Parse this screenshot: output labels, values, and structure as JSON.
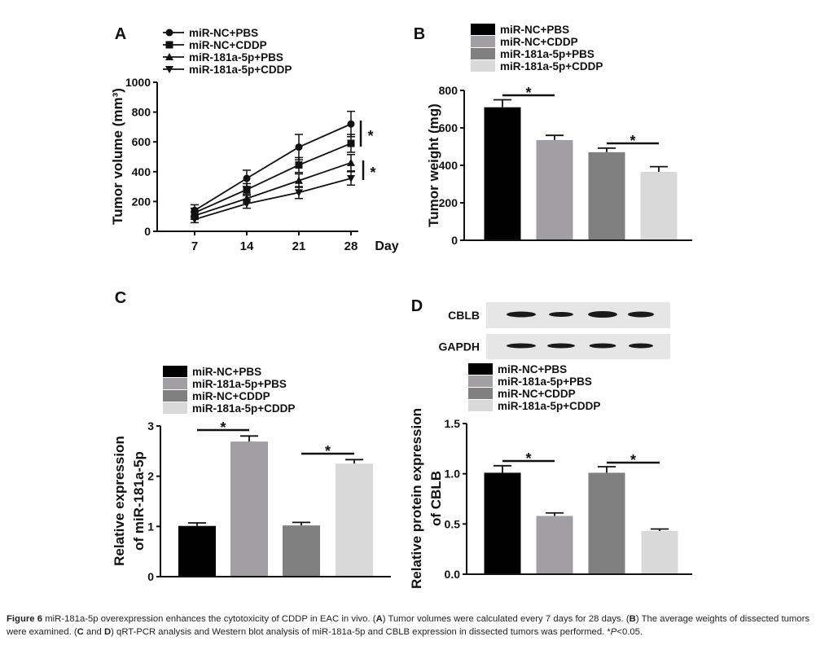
{
  "chart_data": [
    {
      "panel": "A",
      "type": "line",
      "ylabel": "Tumor volume (mm³)",
      "xlabel": "Day",
      "x": [
        7,
        14,
        21,
        28
      ],
      "xticks": [
        "7",
        "14",
        "21",
        "28"
      ],
      "ylim": [
        0,
        1000
      ],
      "yticks": [
        "0",
        "200",
        "400",
        "600",
        "800",
        "1000"
      ],
      "ytick_values": [
        0,
        200,
        400,
        600,
        800,
        1000
      ],
      "series": [
        {
          "name": "miR-NC+PBS",
          "marker": "circle",
          "values": [
            140,
            355,
            565,
            720
          ],
          "errors": [
            38,
            55,
            85,
            85
          ]
        },
        {
          "name": "miR-NC+CDDP",
          "marker": "square",
          "values": [
            125,
            280,
            445,
            590
          ],
          "errors": [
            30,
            40,
            50,
            60
          ]
        },
        {
          "name": "miR-181a-5p+PBS",
          "marker": "triangle",
          "values": [
            105,
            220,
            340,
            460
          ],
          "errors": [
            25,
            30,
            45,
            55
          ]
        },
        {
          "name": "miR-181a-5p+CDDP",
          "marker": "triangle-down",
          "values": [
            80,
            185,
            260,
            355
          ],
          "errors": [
            22,
            30,
            40,
            45
          ]
        }
      ],
      "significance": [
        "*",
        "*"
      ],
      "grid": false,
      "legend": "top-left"
    },
    {
      "panel": "B",
      "type": "bar",
      "ylabel": "Tumor weight (mg)",
      "categories": [
        "miR-NC+PBS",
        "miR-NC+CDDP",
        "miR-181a-5p+PBS",
        "miR-181a-5p+CDDP"
      ],
      "values": [
        710,
        535,
        470,
        365
      ],
      "errors": [
        40,
        25,
        22,
        28
      ],
      "colors": [
        "#000000",
        "#a19ea4",
        "#808080",
        "#d9d9d9"
      ],
      "ylim": [
        0,
        800
      ],
      "yticks": [
        "0",
        "200",
        "400",
        "600",
        "800"
      ],
      "ytick_values": [
        0,
        200,
        400,
        600,
        800
      ],
      "significance": [
        {
          "pair": [
            0,
            1
          ],
          "label": "*"
        },
        {
          "pair": [
            2,
            3
          ],
          "label": "*"
        }
      ],
      "grid": false,
      "legend": "top-left"
    },
    {
      "panel": "C",
      "type": "bar",
      "ylabel": [
        "Relative expression",
        "of miR-181a-5p"
      ],
      "categories": [
        "miR-NC+PBS",
        "miR-181a-5p+PBS",
        "miR-NC+CDDP",
        "miR-181a-5p+CDDP"
      ],
      "values": [
        1.01,
        2.69,
        1.02,
        2.25
      ],
      "errors": [
        0.06,
        0.11,
        0.06,
        0.08
      ],
      "colors": [
        "#000000",
        "#a19ea4",
        "#808080",
        "#d9d9d9"
      ],
      "ylim": [
        0,
        3
      ],
      "yticks": [
        "0",
        "1",
        "2",
        "3"
      ],
      "ytick_values": [
        0,
        1,
        2,
        3
      ],
      "significance": [
        {
          "pair": [
            0,
            1
          ],
          "label": "*"
        },
        {
          "pair": [
            2,
            3
          ],
          "label": "*"
        }
      ],
      "grid": false,
      "legend": "top-left"
    },
    {
      "panel": "D",
      "type": "bar",
      "ylabel": [
        "Relative protein expression",
        "of CBLB"
      ],
      "categories": [
        "miR-NC+PBS",
        "miR-181a-5p+PBS",
        "miR-NC+CDDP",
        "miR-181a-5p+CDDP"
      ],
      "values": [
        1.01,
        0.58,
        1.01,
        0.43
      ],
      "errors": [
        0.07,
        0.03,
        0.06,
        0.02
      ],
      "colors": [
        "#000000",
        "#a19ea4",
        "#808080",
        "#d9d9d9"
      ],
      "ylim": [
        0,
        1.5
      ],
      "yticks": [
        "0.0",
        "0.5",
        "1.0",
        "1.5"
      ],
      "ytick_values": [
        0,
        0.5,
        1.0,
        1.5
      ],
      "significance": [
        {
          "pair": [
            0,
            1
          ],
          "label": "*"
        },
        {
          "pair": [
            2,
            3
          ],
          "label": "*"
        }
      ],
      "blot": {
        "rows": [
          "CBLB",
          "GAPDH"
        ]
      },
      "grid": false,
      "legend": "top-left"
    }
  ],
  "caption": {
    "fig": "Figure 6",
    "t1": " miR-181a-5p overexpression enhances the cytotoxicity of CDDP in EAC in vivo. (",
    "a": "A",
    "t2": ") Tumor volumes were calculated every 7 days for 28 days. (",
    "b": "B",
    "t3": ") The average weights of dissected tumors were examined. (",
    "c": "C",
    "t4": " and ",
    "d": "D",
    "t5": ") qRT-PCR analysis and Western blot analysis of miR-181a-5p and CBLB expression in dissected tumors was performed. *",
    "p": "P",
    "t6": "<0.05."
  }
}
